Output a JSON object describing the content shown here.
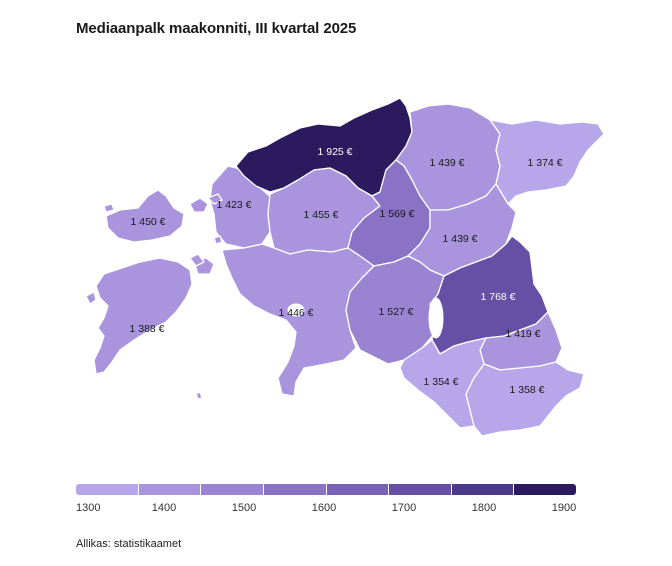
{
  "title": "Mediaanpalk maakonniti, III kvartal 2025",
  "source": "Allikas: statistikaamet",
  "colors": {
    "scale": [
      "#b8a6ea",
      "#a994dd",
      "#9a83d1",
      "#8a72c4",
      "#7861b6",
      "#6650a6",
      "#4c3a8a",
      "#2b1a5e"
    ]
  },
  "legend": {
    "ticks": [
      "1300",
      "1400",
      "1500",
      "1600",
      "1700",
      "1800",
      "1900"
    ]
  },
  "regions": [
    {
      "id": "harju",
      "label": "1 925 €",
      "value": 1925
    },
    {
      "id": "laane-viru",
      "label": "1 439 €",
      "value": 1439
    },
    {
      "id": "ida-viru",
      "label": "1 374 €",
      "value": 1374
    },
    {
      "id": "laane",
      "label": "1 423 €",
      "value": 1423
    },
    {
      "id": "rapla",
      "label": "1 455 €",
      "value": 1455
    },
    {
      "id": "jarva",
      "label": "1 569 €",
      "value": 1569
    },
    {
      "id": "jogeva",
      "label": "1 439 €",
      "value": 1439
    },
    {
      "id": "hiiu",
      "label": "1 450 €",
      "value": 1450
    },
    {
      "id": "saare",
      "label": "1 388 €",
      "value": 1388
    },
    {
      "id": "parnu",
      "label": "1 446 €",
      "value": 1446
    },
    {
      "id": "viljandi",
      "label": "1 527 €",
      "value": 1527
    },
    {
      "id": "tartu",
      "label": "1 768 €",
      "value": 1768
    },
    {
      "id": "polva",
      "label": "1 419 €",
      "value": 1419
    },
    {
      "id": "valga",
      "label": "1 354 €",
      "value": 1354
    },
    {
      "id": "voru",
      "label": "1 358 €",
      "value": 1358
    }
  ]
}
